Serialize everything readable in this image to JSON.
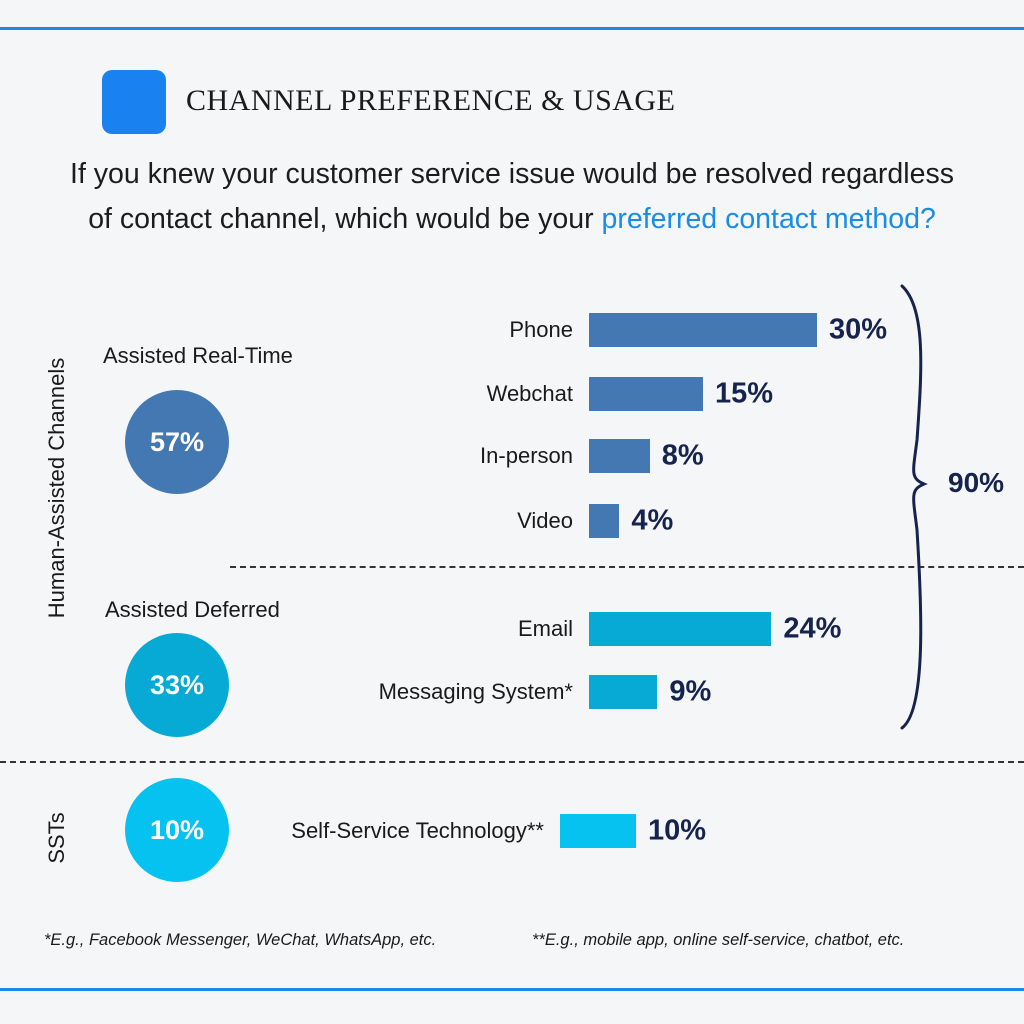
{
  "header": {
    "title": "CHANNEL PREFERENCE & USAGE"
  },
  "question": {
    "text": "If you knew your customer service issue would be resolved regardless of contact channel, which would be your ",
    "highlight": "preferred contact method?"
  },
  "side_labels": {
    "human_assisted": "Human-Assisted Channels",
    "ssts": "SSTs"
  },
  "groups": [
    {
      "name": "Assisted Real-Time",
      "percent": "57%",
      "color": "#4478b2"
    },
    {
      "name": "Assisted Deferred",
      "percent": "33%",
      "color": "#07a9d5"
    },
    {
      "name": "",
      "percent": "10%",
      "color": "#05c2f0"
    }
  ],
  "chart_data": {
    "type": "bar",
    "orientation": "horizontal",
    "categories": [
      "Phone",
      "Webchat",
      "In-person",
      "Video",
      "Email",
      "Messaging System*",
      "Self-Service Technology**"
    ],
    "values": [
      30,
      15,
      8,
      4,
      24,
      9,
      10
    ],
    "value_labels": [
      "30%",
      "15%",
      "8%",
      "4%",
      "24%",
      "9%",
      "10%"
    ],
    "bar_colors": [
      "#4478b2",
      "#4478b2",
      "#4478b2",
      "#4478b2",
      "#07a9d5",
      "#07a9d5",
      "#05c2f0"
    ],
    "group_of_bar": [
      0,
      0,
      0,
      0,
      1,
      1,
      2
    ],
    "bracket_total": "90%",
    "unit": "%"
  },
  "footnotes": {
    "left": "*E.g., Facebook Messenger, WeChat, WhatsApp, etc.",
    "right": "**E.g., mobile app, online self-service, chatbot, etc."
  }
}
